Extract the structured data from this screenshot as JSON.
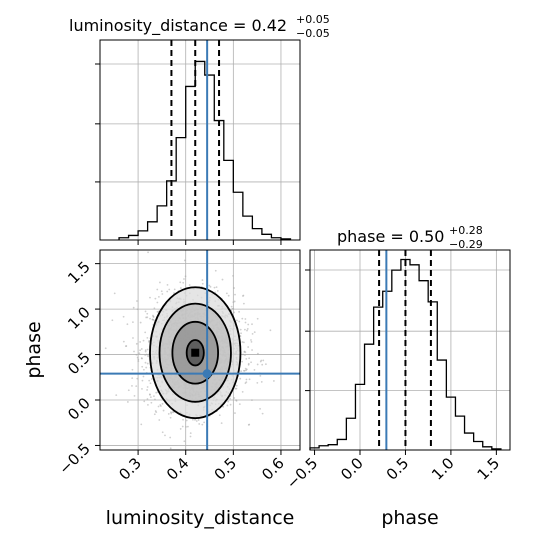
{
  "chart_data": {
    "type": "corner",
    "colors": {
      "truth": "#3b7ab5",
      "lines": "#000000",
      "points": "#a8a8a8",
      "grid": "#b0b0b0"
    },
    "parameters": [
      {
        "name": "luminosity_distance",
        "label": "luminosity_distance",
        "median": 0.42,
        "plus": "+0.05",
        "minus": "−0.05",
        "title_main": "luminosity_distance = 0.42",
        "range": [
          0.22,
          0.64
        ],
        "ticks": [
          0.3,
          0.4,
          0.5,
          0.6
        ],
        "tick_labels": [
          "0.3",
          "0.4",
          "0.5",
          "0.6"
        ],
        "quantiles": [
          0.37,
          0.42,
          0.47
        ],
        "truth": 0.445
      },
      {
        "name": "phase",
        "label": "phase",
        "median": 0.5,
        "plus": "+0.28",
        "minus": "−0.29",
        "title_main": "phase = 0.50",
        "range": [
          -0.55,
          1.65
        ],
        "ticks": [
          -0.5,
          0.0,
          0.5,
          1.0,
          1.5
        ],
        "tick_labels": [
          "−0.5",
          "0.0",
          "0.5",
          "1.0",
          "1.5"
        ],
        "quantiles": [
          0.21,
          0.5,
          0.78
        ],
        "truth": 0.29
      }
    ],
    "histograms": [
      {
        "param": "luminosity_distance",
        "bin_edges": [
          0.26,
          0.28,
          0.3,
          0.32,
          0.34,
          0.36,
          0.38,
          0.4,
          0.42,
          0.44,
          0.46,
          0.48,
          0.5,
          0.52,
          0.54,
          0.56,
          0.58,
          0.6,
          0.62
        ],
        "counts": [
          2,
          4,
          8,
          16,
          30,
          52,
          90,
          135,
          157,
          145,
          105,
          70,
          42,
          21,
          10,
          5,
          2,
          1
        ]
      },
      {
        "param": "phase",
        "bin_edges": [
          -0.55,
          -0.45,
          -0.35,
          -0.25,
          -0.15,
          -0.05,
          0.05,
          0.15,
          0.25,
          0.35,
          0.45,
          0.55,
          0.65,
          0.75,
          0.85,
          0.95,
          1.05,
          1.15,
          1.25,
          1.35,
          1.45,
          1.55
        ],
        "counts": [
          2,
          4,
          5,
          10,
          30,
          62,
          100,
          135,
          150,
          170,
          180,
          175,
          160,
          140,
          85,
          50,
          32,
          16,
          8,
          3,
          1
        ]
      }
    ],
    "scatter_2d": {
      "x_param": "luminosity_distance",
      "y_param": "phase",
      "center": [
        0.42,
        0.52
      ],
      "contour_levels": [
        {
          "name": "level-4",
          "rx": 0.095,
          "ry": 0.72
        },
        {
          "name": "level-3",
          "rx": 0.075,
          "ry": 0.54
        },
        {
          "name": "level-2",
          "rx": 0.048,
          "ry": 0.34
        },
        {
          "name": "level-1",
          "rx": 0.018,
          "ry": 0.14
        }
      ],
      "truth_point": [
        0.445,
        0.29
      ]
    },
    "grid": true
  }
}
